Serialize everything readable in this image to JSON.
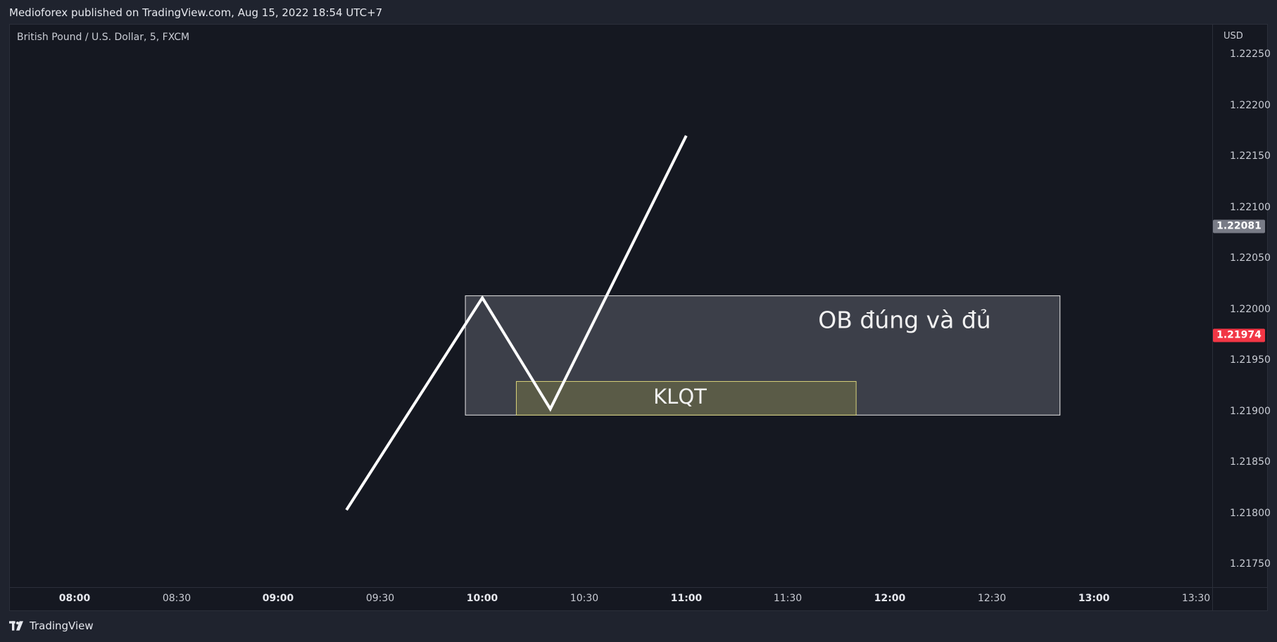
{
  "header": {
    "published": "Medioforex published on TradingView.com, Aug 15, 2022 18:54 UTC+7"
  },
  "chart": {
    "symbol_title": "British Pound / U.S. Dollar, 5, FXCM",
    "currency": "USD",
    "price_ticks": [
      "1.22250",
      "1.22200",
      "1.22150",
      "1.22100",
      "1.22050",
      "1.22000",
      "1.21950",
      "1.21900",
      "1.21850",
      "1.21800",
      "1.21750"
    ],
    "time_ticks": [
      {
        "label": "08:00",
        "bold": true
      },
      {
        "label": "08:30",
        "bold": false
      },
      {
        "label": "09:00",
        "bold": true
      },
      {
        "label": "09:30",
        "bold": false
      },
      {
        "label": "10:00",
        "bold": true
      },
      {
        "label": "10:30",
        "bold": false
      },
      {
        "label": "11:00",
        "bold": true
      },
      {
        "label": "11:30",
        "bold": false
      },
      {
        "label": "12:00",
        "bold": true
      },
      {
        "label": "12:30",
        "bold": false
      },
      {
        "label": "13:00",
        "bold": true
      },
      {
        "label": "13:30",
        "bold": false
      }
    ],
    "badges": [
      {
        "value": "1.22081",
        "color": "#787b86"
      },
      {
        "value": "1.21974",
        "color": "#f23645"
      }
    ],
    "drawing": {
      "line_color": "#ffffff",
      "zigzag": [
        {
          "time": "09:20",
          "price": 1.21803
        },
        {
          "time": "10:00",
          "price": 1.22011
        },
        {
          "time": "10:20",
          "price": 1.21902
        },
        {
          "time": "11:00",
          "price": 1.2217
        }
      ],
      "ob_zone": {
        "label": "OB đúng và đủ",
        "time_from": "09:55",
        "time_to": "12:50",
        "price_top": 1.22013,
        "price_bottom": 1.21896,
        "fill": "#3c3f49",
        "border": "#e8e8e8"
      },
      "klqt_zone": {
        "label": "KLQT",
        "time_from": "10:10",
        "time_to": "11:50",
        "price_top": 1.21929,
        "price_bottom": 1.21896,
        "fill": "#5a5b47",
        "border": "#d8d27a"
      }
    }
  },
  "footer": {
    "brand": "TradingView",
    "logo_icon": "tradingview-logo-icon"
  }
}
